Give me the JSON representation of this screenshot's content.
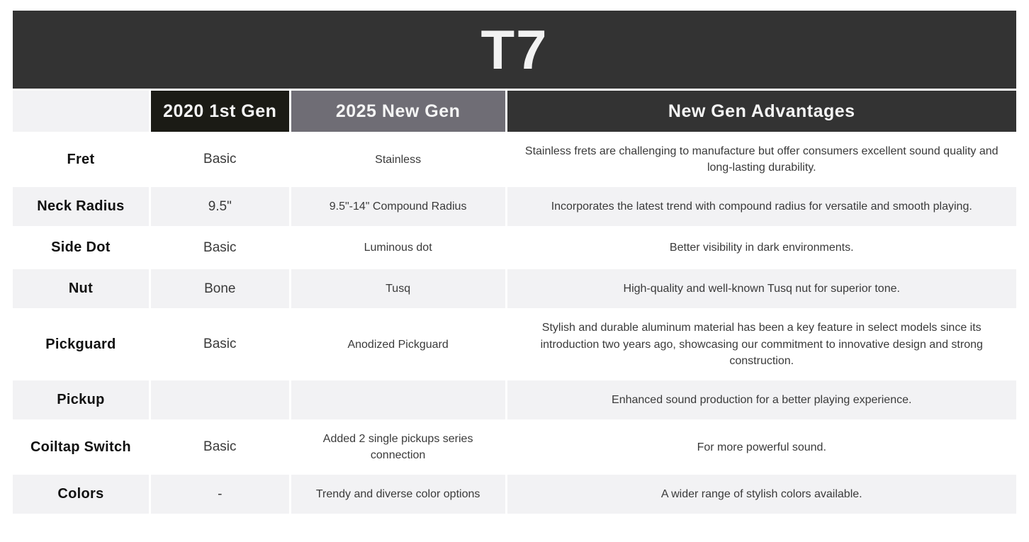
{
  "title": "T7",
  "columns": {
    "feature": "",
    "gen2020": "2020 1st Gen",
    "gen2025": "2025 New Gen",
    "advantages": "New Gen Advantages"
  },
  "colors": {
    "title_bar_bg": "#333333",
    "gen2020_header_bg": "#1b1b15",
    "gen2025_header_bg": "#6f6d75",
    "advantages_header_bg": "#333333",
    "header_text": "#f5f5f5",
    "shaded_row_bg": "#f2f2f4",
    "plain_row_bg": "#ffffff",
    "body_text": "#3a3a3a",
    "label_text": "#111111"
  },
  "table": {
    "rows": [
      {
        "label": "Fret",
        "gen2020": "Basic",
        "gen2025": "Stainless",
        "advantage": "Stainless frets are challenging to manufacture but offer consumers excellent sound quality and long-lasting durability."
      },
      {
        "label": "Neck Radius",
        "gen2020": "9.5\"",
        "gen2025": "9.5\"-14\" Compound Radius",
        "advantage": "Incorporates the latest trend with compound radius for versatile and smooth playing."
      },
      {
        "label": "Side Dot",
        "gen2020": "Basic",
        "gen2025": "Luminous dot",
        "advantage": "Better visibility in dark environments."
      },
      {
        "label": "Nut",
        "gen2020": "Bone",
        "gen2025": "Tusq",
        "advantage": "High-quality and well-known Tusq nut for superior tone."
      },
      {
        "label": "Pickguard",
        "gen2020": "Basic",
        "gen2025": "Anodized Pickguard",
        "advantage": "Stylish and durable aluminum material has been a key feature in select models since its introduction two years ago, showcasing our commitment to innovative design and strong construction."
      },
      {
        "label": "Pickup",
        "gen2020": "",
        "gen2025": "",
        "advantage": "Enhanced sound production for a better playing experience."
      },
      {
        "label": "Coiltap Switch",
        "gen2020": "Basic",
        "gen2025": "Added 2 single pickups series connection",
        "advantage": "For more powerful sound."
      },
      {
        "label": "Colors",
        "gen2020": "-",
        "gen2025": "Trendy and diverse color options",
        "advantage": "A wider range of stylish colors available."
      }
    ]
  }
}
